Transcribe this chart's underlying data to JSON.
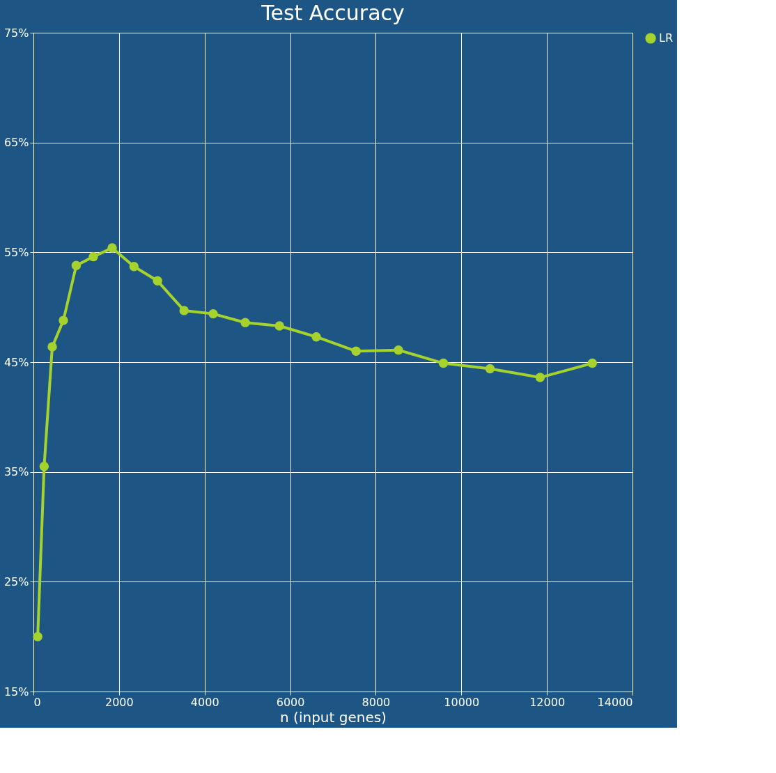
{
  "chart_data": {
    "type": "line",
    "title": "Test Accuracy",
    "xlabel": "n (input genes)",
    "x": [
      100,
      250,
      440,
      700,
      1000,
      1400,
      1840,
      2350,
      2900,
      3520,
      4200,
      4950,
      5750,
      6610,
      7540,
      8530,
      9580,
      10670,
      11840,
      13060
    ],
    "series": [
      {
        "name": "LR",
        "color": "#a6d22e",
        "values": [
          20,
          35.5,
          46.4,
          48.8,
          53.8,
          54.6,
          55.4,
          53.7,
          52.4,
          49.7,
          49.4,
          48.6,
          48.3,
          47.3,
          46.0,
          46.1,
          44.9,
          44.4,
          43.6,
          44.9
        ]
      }
    ],
    "xlim": [
      0,
      14000
    ],
    "xticks": [
      0,
      2000,
      4000,
      6000,
      8000,
      10000,
      12000,
      14000
    ],
    "ylim": [
      15,
      75
    ],
    "yticks": [
      {
        "value": 15,
        "label": "15%"
      },
      {
        "value": 25,
        "label": "25%"
      },
      {
        "value": 35,
        "label": "35%"
      },
      {
        "value": 45,
        "label": "45%"
      },
      {
        "value": 55,
        "label": "55%"
      },
      {
        "value": 65,
        "label": "65%"
      },
      {
        "value": 75,
        "label": "75%"
      }
    ],
    "grid": true,
    "legend": "right",
    "marker": "circle",
    "line_style": "solid"
  }
}
